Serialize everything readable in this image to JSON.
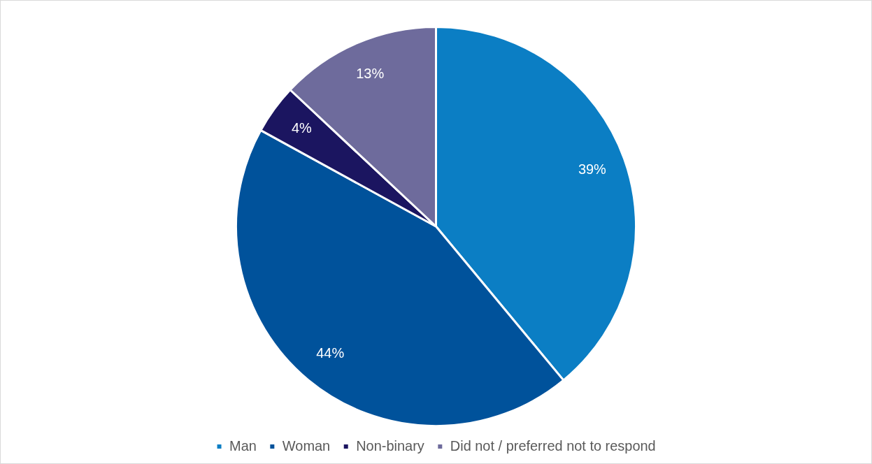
{
  "chart_data": {
    "type": "pie",
    "categories": [
      "Man",
      "Woman",
      "Non-binary",
      "Did not / preferred not to respond"
    ],
    "values": [
      39,
      44,
      4,
      13
    ],
    "colors": [
      "#0b7ec4",
      "#00529b",
      "#1b1560",
      "#6e6b9c"
    ],
    "value_labels": [
      "39%",
      "44%",
      "4%",
      "13%"
    ],
    "legend": "bottom"
  }
}
